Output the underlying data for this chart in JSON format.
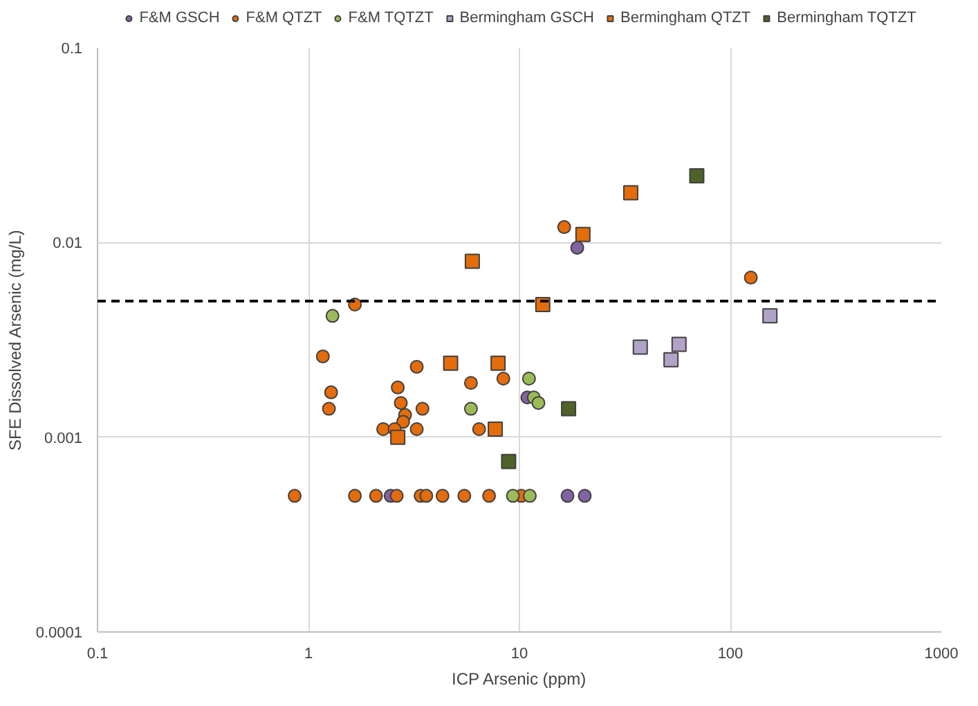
{
  "chart_data": {
    "type": "scatter",
    "xlabel": "ICP Arsenic (ppm)",
    "ylabel": "SFE Dissolved Arsenic (mg/L)",
    "log": "xy",
    "grid": true,
    "legend": "top",
    "xlim": [
      0.1,
      1000
    ],
    "xticks": [
      0.1,
      1,
      10,
      100,
      1000
    ],
    "ylim": [
      0.0001,
      0.1
    ],
    "yticks": [
      0.0001,
      0.001,
      0.01,
      0.1
    ],
    "ref_lines": [
      {
        "axis": "y",
        "value": 0.005,
        "line_style": "dashed",
        "color": "#000000"
      }
    ],
    "series": [
      {
        "name": "F&M GSCH",
        "color": "#8064a2",
        "marker": "circle",
        "x": [
          18.8,
          10.9,
          2.45,
          16.9,
          20.4
        ],
        "values": [
          0.0094,
          0.0016,
          0.0005,
          0.0005,
          0.0005
        ]
      },
      {
        "name": "F&M QTZT",
        "color": "#e46c0a",
        "marker": "circle",
        "x": [
          16.3,
          1.66,
          1.17,
          3.26,
          1.28,
          1.25,
          2.65,
          5.89,
          8.39,
          2.74,
          3.47,
          2.87,
          2.81,
          2.26,
          2.56,
          3.26,
          6.44,
          125,
          0.86,
          1.66,
          2.09,
          2.62,
          3.4,
          3.62,
          4.32,
          5.48,
          7.18,
          10.2
        ],
        "values": [
          0.012,
          0.0048,
          0.0026,
          0.0023,
          0.0017,
          0.0014,
          0.0018,
          0.0019,
          0.002,
          0.0015,
          0.0014,
          0.0013,
          0.0012,
          0.0011,
          0.0011,
          0.0011,
          0.0011,
          0.0066,
          0.0005,
          0.0005,
          0.0005,
          0.0005,
          0.0005,
          0.0005,
          0.0005,
          0.0005,
          0.0005,
          0.0005
        ]
      },
      {
        "name": "F&M TQTZT",
        "color": "#9bbb59",
        "marker": "circle",
        "x": [
          1.3,
          11.1,
          11.7,
          12.3,
          5.89,
          9.31,
          11.2
        ],
        "values": [
          0.0042,
          0.002,
          0.0016,
          0.0015,
          0.0014,
          0.0005,
          0.0005
        ]
      },
      {
        "name": "Bermingham GSCH",
        "color": "#b3a2c7",
        "marker": "square",
        "x": [
          37.4,
          57.1,
          52.3,
          154
        ],
        "values": [
          0.0029,
          0.003,
          0.0025,
          0.0042
        ]
      },
      {
        "name": "Bermingham QTZT",
        "color": "#e46c0a",
        "marker": "square",
        "x": [
          20,
          5.98,
          12.9,
          4.72,
          7.92,
          7.68,
          2.65,
          33.7
        ],
        "values": [
          0.011,
          0.008,
          0.0048,
          0.0024,
          0.0024,
          0.0011,
          0.001,
          0.018
        ]
      },
      {
        "name": "Bermingham TQTZT",
        "color": "#4f6228",
        "marker": "square",
        "x": [
          69.3,
          17.1,
          8.89
        ],
        "values": [
          0.022,
          0.0014,
          0.00075
        ]
      }
    ]
  }
}
